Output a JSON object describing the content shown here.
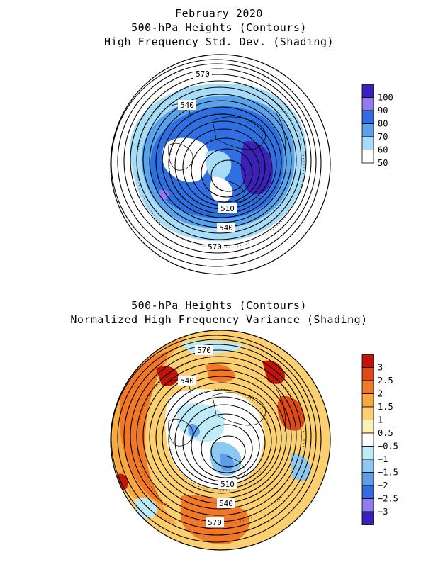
{
  "panel_top": {
    "title_line1": "February 2020",
    "title_line2": "500-hPa Heights (Contours)",
    "title_line3": "High Frequency Std. Dev. (Shading)",
    "contour_labels": [
      "570",
      "540",
      "510",
      "540",
      "570"
    ],
    "colorbar": {
      "levels": [
        "100",
        "90",
        "80",
        "70",
        "60",
        "50"
      ],
      "colors": [
        "#3a22b8",
        "#8e7cf0",
        "#2f6fe0",
        "#5aa3ec",
        "#a8dcf6",
        "#ffffff"
      ]
    }
  },
  "panel_bottom": {
    "title_line1": "500-hPa Heights (Contours)",
    "title_line2": "Normalized High Frequency Variance (Shading)",
    "contour_labels": [
      "570",
      "540",
      "510",
      "540",
      "570"
    ],
    "colorbar": {
      "levels": [
        "3",
        "2.5",
        "2",
        "1.5",
        "1",
        "0.5",
        "−0.5",
        "−1",
        "−1.5",
        "−2",
        "−2.5",
        "−3"
      ],
      "colors": [
        "#c0140c",
        "#e04a1a",
        "#f07828",
        "#f8a840",
        "#fcd070",
        "#fff2b0",
        "#ffffff",
        "#bfeaf8",
        "#8cc8f0",
        "#5e9ee8",
        "#2f6fe0",
        "#8e7cf0",
        "#3a22b8"
      ]
    }
  }
}
